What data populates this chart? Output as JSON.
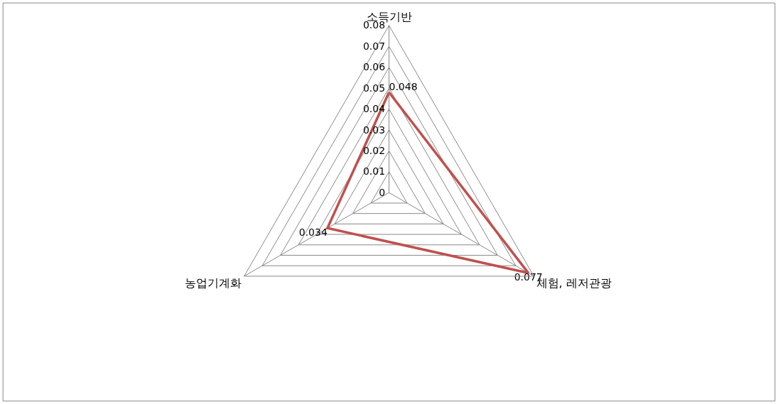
{
  "chart_data": {
    "type": "radar",
    "categories": [
      "소득기반",
      "체험, 레저관광",
      "농업기계화"
    ],
    "series": [
      {
        "color": "#c0504d",
        "values": [
          0.048,
          0.077,
          0.034
        ]
      }
    ],
    "ylim": [
      0,
      0.08
    ],
    "yticks": [
      0,
      0.01,
      0.02,
      0.03,
      0.04,
      0.05,
      0.06,
      0.07,
      0.08
    ],
    "grid": true,
    "marker": "none",
    "line_style": "solid",
    "data_labels": true
  }
}
